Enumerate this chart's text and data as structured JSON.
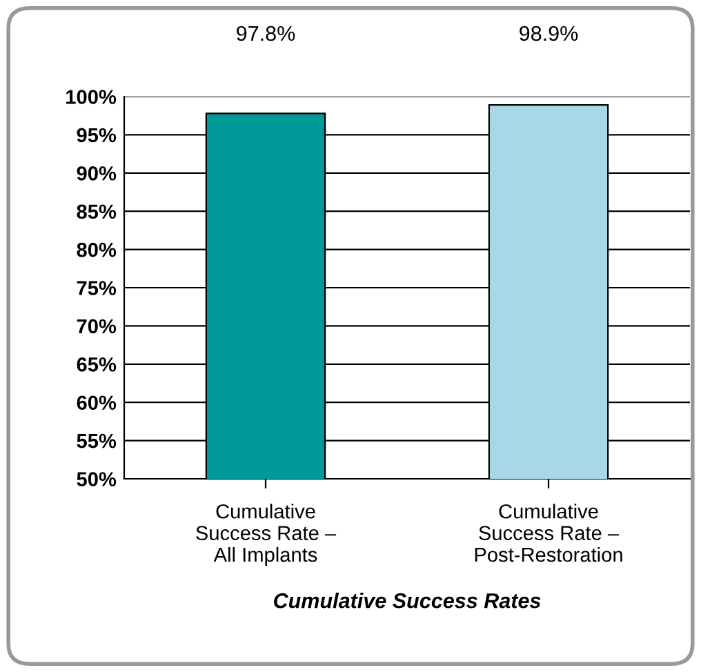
{
  "chart_data": {
    "type": "bar",
    "categories": [
      "Cumulative\nSuccess Rate –\nAll Implants",
      "Cumulative\nSuccess Rate –\nPost-Restoration"
    ],
    "values": [
      97.8,
      98.9
    ],
    "colors": [
      "#009999",
      "#a8d8e6"
    ],
    "value_labels": [
      "97.8%",
      "98.9%"
    ],
    "xlabel": "Cumulative Success Rates",
    "ylim": [
      50,
      100
    ],
    "yticks": [
      {
        "value": 50,
        "label": "50%"
      },
      {
        "value": 55,
        "label": "55%"
      },
      {
        "value": 60,
        "label": "60%"
      },
      {
        "value": 65,
        "label": "65%"
      },
      {
        "value": 70,
        "label": "70%"
      },
      {
        "value": 75,
        "label": "75%"
      },
      {
        "value": 80,
        "label": "80%"
      },
      {
        "value": 85,
        "label": "85%"
      },
      {
        "value": 90,
        "label": "90%"
      },
      {
        "value": 95,
        "label": "95%"
      },
      {
        "value": 100,
        "label": "100%"
      }
    ],
    "grid": "y"
  }
}
